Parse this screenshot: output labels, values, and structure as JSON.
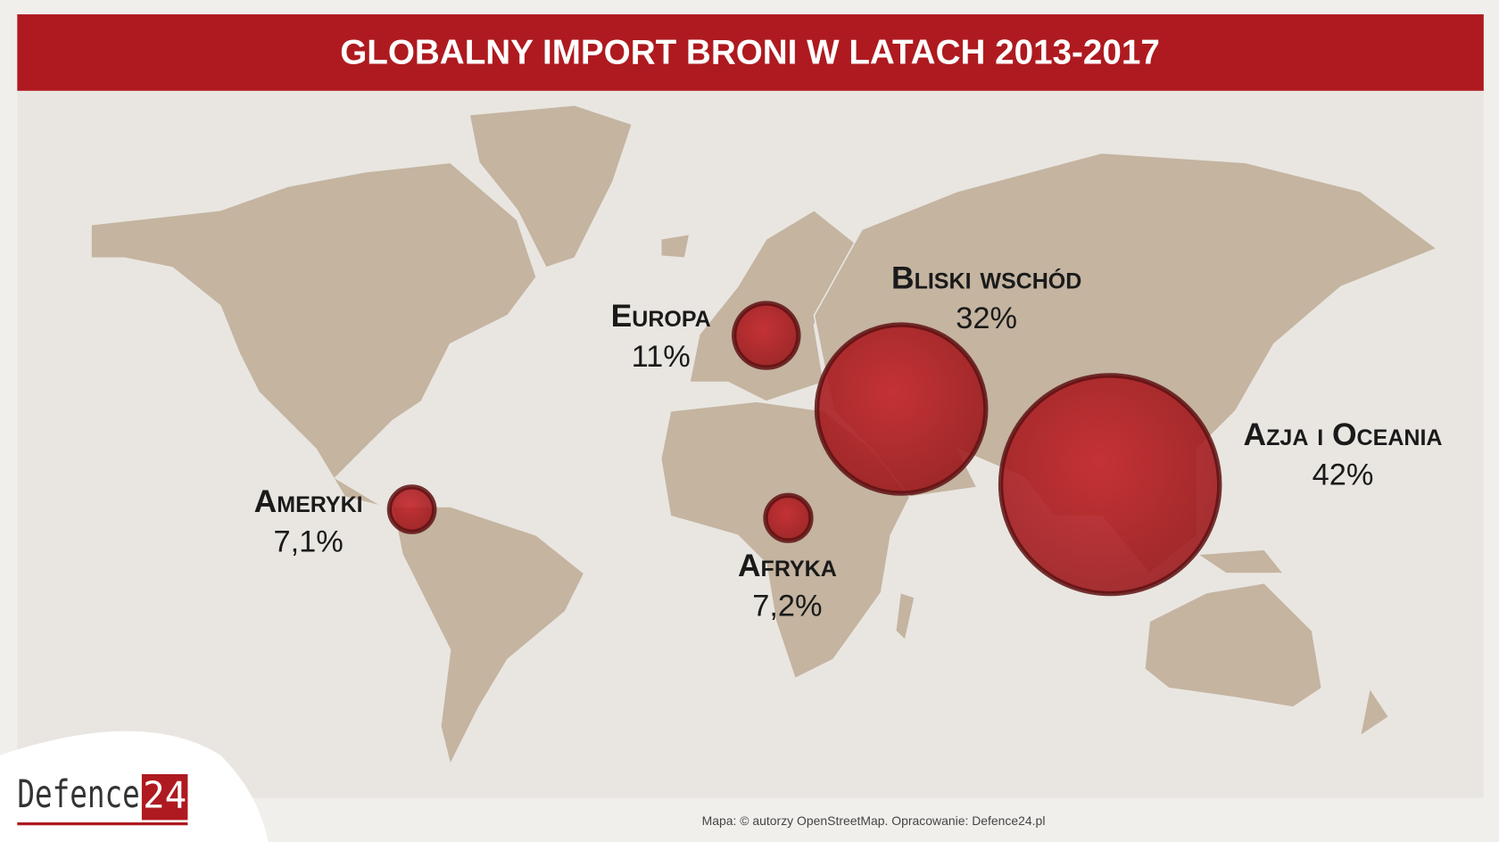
{
  "header": {
    "title": "GLOBALNY IMPORT BRONI W LATACH 2013-2017"
  },
  "chart_data": {
    "type": "bubble",
    "categories": [
      "Ameryki",
      "Europa",
      "Bliski wschód",
      "Afryka",
      "Azja i Oceania"
    ],
    "values": [
      7.1,
      11,
      32,
      7.2,
      42
    ],
    "value_labels": [
      "7,1%",
      "11%",
      "32%",
      "7,2%",
      "42%"
    ],
    "color": "#b01a1e"
  },
  "footer": {
    "credit": "Mapa: © autorzy OpenStreetMap. Opracowanie: Defence24.pl",
    "logo": {
      "text": "Defence",
      "number": "24"
    }
  }
}
